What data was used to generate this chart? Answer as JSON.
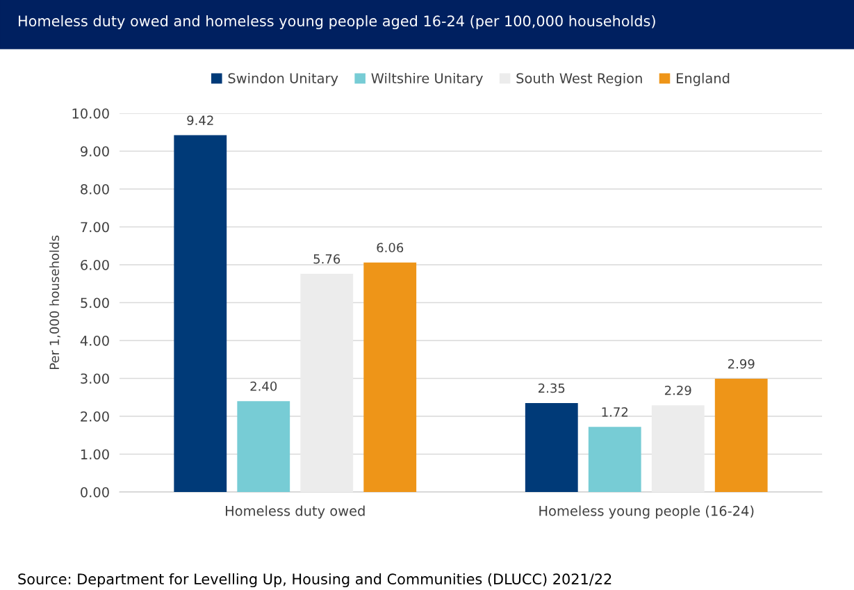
{
  "chart_data": {
    "type": "bar",
    "title": "Homeless duty owed and homeless young people aged 16-24 (per 100,000 households)",
    "ylabel": "Per 1,000 households",
    "categories": [
      "Homeless duty owed",
      "Homeless young people (16-24)"
    ],
    "series": [
      {
        "name": "Swindon Unitary",
        "color": "#003a78",
        "values": [
          9.42,
          2.35
        ],
        "value_labels": [
          "9.42",
          "2.35"
        ]
      },
      {
        "name": "Wiltshire Unitary",
        "color": "#77ccd5",
        "values": [
          2.4,
          1.72
        ],
        "value_labels": [
          "2.40",
          "1.72"
        ]
      },
      {
        "name": "South West Region",
        "color": "#ececec",
        "values": [
          5.76,
          2.29
        ],
        "value_labels": [
          "5.76",
          "2.29"
        ]
      },
      {
        "name": "England",
        "color": "#ee9518",
        "values": [
          6.06,
          2.99
        ],
        "value_labels": [
          "6.06",
          "2.99"
        ]
      }
    ],
    "ylim": [
      0,
      10
    ],
    "yticks": [
      {
        "value": 0,
        "label": "0.00"
      },
      {
        "value": 1,
        "label": "1.00"
      },
      {
        "value": 2,
        "label": "2.00"
      },
      {
        "value": 3,
        "label": "3.00"
      },
      {
        "value": 4,
        "label": "4.00"
      },
      {
        "value": 5,
        "label": "5.00"
      },
      {
        "value": 6,
        "label": "6.00"
      },
      {
        "value": 7,
        "label": "7.00"
      },
      {
        "value": 8,
        "label": "8.00"
      },
      {
        "value": 9,
        "label": "9.00"
      },
      {
        "value": 10,
        "label": "10.00"
      }
    ],
    "grid": "y",
    "legend": "top",
    "annotations": [
      "Source: Department for Levelling Up, Housing and Communities (DLUCC) 2021/22"
    ]
  }
}
